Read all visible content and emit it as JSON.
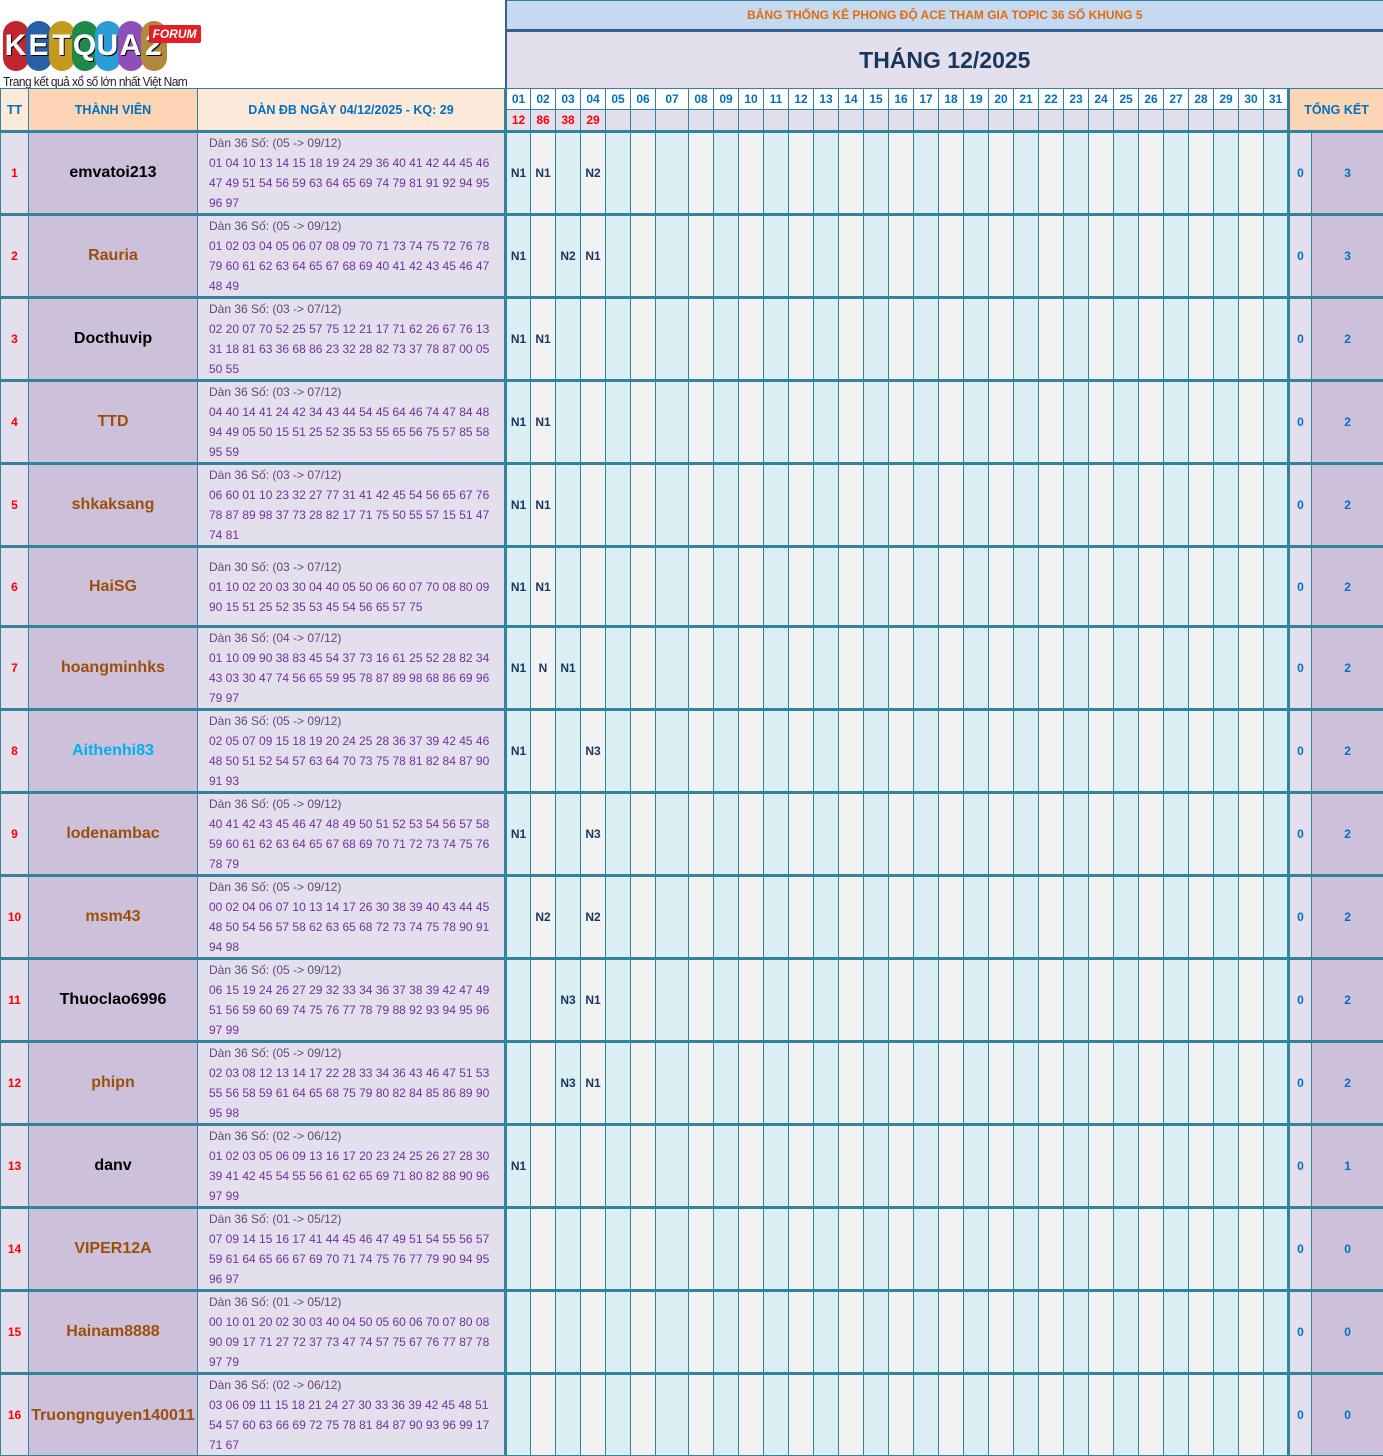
{
  "logo": {
    "letters": [
      "K",
      "E",
      "T",
      "Q",
      "U",
      "A",
      "2"
    ],
    "letter_colors": [
      "#c0262d",
      "#2a5fa8",
      "#c49a1c",
      "#1d8a4a",
      "#2b9cd8",
      "#8e4fb8",
      "#b08a3a"
    ],
    "badge": "FORUM",
    "tagline": "Trang kết quả xổ số lớn nhất Việt Nam"
  },
  "header": {
    "title": "BẢNG THỐNG KÊ PHONG ĐỘ ACE THAM GIA TOPIC 36 SỐ KHUNG 5",
    "month": "THÁNG 12/2025",
    "col_tt": "TT",
    "col_member": "THÀNH VIÊN",
    "col_dan": "DÀN ĐB NGÀY 04/12/2025 - KQ: 29",
    "col_total": "TỔNG KẾT"
  },
  "days": [
    "01",
    "02",
    "03",
    "04",
    "05",
    "06",
    "07",
    "08",
    "09",
    "10",
    "11",
    "12",
    "13",
    "14",
    "15",
    "16",
    "17",
    "18",
    "19",
    "20",
    "21",
    "22",
    "23",
    "24",
    "25",
    "26",
    "27",
    "28",
    "29",
    "30",
    "31"
  ],
  "results": [
    "12",
    "86",
    "38",
    "29"
  ],
  "colors": {
    "name_black": "#000000",
    "name_brown": "#9c4f0a",
    "name_cyan": "#00b0f0"
  },
  "rows": [
    {
      "tt": "1",
      "name": "emvatoi213",
      "color": "name_black",
      "dan_header": "Dàn 36 Số: (05 -> 09/12)",
      "numbers": "01 04 10 13 14 15 18 19 24 29 36 40 41 42 44 45 46 47 49 51 54 56 59 63 64 65 69 74 79 81 91 92 94 95 96 97",
      "marks": {
        "01": "N1",
        "02": "N1",
        "04": "N2"
      },
      "zero": "0",
      "total": "3"
    },
    {
      "tt": "2",
      "name": "Rauria",
      "color": "name_brown",
      "dan_header": "Dàn 36 Số: (05 -> 09/12)",
      "numbers": "01 02 03 04 05 06 07 08 09 70 71 73 74 75 72 76 78 79 60 61 62 63 64 65 67 68 69 40 41 42 43 45 46 47 48 49",
      "marks": {
        "01": "N1",
        "03": "N2",
        "04": "N1"
      },
      "zero": "0",
      "total": "3"
    },
    {
      "tt": "3",
      "name": "Docthuvip",
      "color": "name_black",
      "dan_header": "Dàn 36 Số: (03 -> 07/12)",
      "numbers": "02 20 07 70 52 25 57 75 12 21 17 71 62 26 67 76 13 31 18 81 63 36 68 86 23 32 28 82 73 37 78 87 00 05 50 55",
      "marks": {
        "01": "N1",
        "02": "N1"
      },
      "zero": "0",
      "total": "2"
    },
    {
      "tt": "4",
      "name": "TTD",
      "color": "name_brown",
      "dan_header": "Dàn 36 Số: (03 -> 07/12)",
      "numbers": "04 40 14 41 24 42 34 43 44 54 45 64 46 74 47 84 48 94 49 05 50 15 51 25 52 35 53 55 65 56 75 57 85 58 95 59",
      "marks": {
        "01": "N1",
        "02": "N1"
      },
      "zero": "0",
      "total": "2"
    },
    {
      "tt": "5",
      "name": "shkaksang",
      "color": "name_brown",
      "dan_header": "Dàn 36 Số: (03 -> 07/12)",
      "numbers": "06 60 01 10 23 32 27 77 31 41 42 45 54 56 65 67 76 78 87 89 98 37 73 28 82 17 71 75 50 55 57 15 51 47 74 81",
      "marks": {
        "01": "N1",
        "02": "N1"
      },
      "zero": "0",
      "total": "2"
    },
    {
      "tt": "6",
      "name": "HaiSG",
      "color": "name_brown",
      "dan_header": "Dàn 30 Số: (03 -> 07/12)",
      "numbers": "01 10 02 20 03 30 04 40 05 50 06 60 07 70 08 80 09 90 15 51 25 52 35 53 45 54 56 65 57 75",
      "marks": {
        "01": "N1",
        "02": "N1"
      },
      "zero": "0",
      "total": "2"
    },
    {
      "tt": "7",
      "name": "hoangminhks",
      "color": "name_brown",
      "dan_header": "Dàn 36 Số: (04 -> 07/12)",
      "numbers": "01 10 09 90 38 83 45 54 37 73 16 61 25 52 28 82 34 43 03 30 47 74 56 65 59 95 78 87 89 98 68 86 69 96 79 97",
      "marks": {
        "01": "N1",
        "02": "N",
        "03": "N1"
      },
      "zero": "0",
      "total": "2"
    },
    {
      "tt": "8",
      "name": "Aithenhi83",
      "color": "name_cyan",
      "dan_header": "Dàn 36 Số: (05 -> 09/12)",
      "numbers": "02 05 07 09 15 18 19 20 24 25 28 36 37 39 42 45 46 48 50 51 52 54 57 63 64 70 73 75 78 81 82 84 87 90 91 93",
      "marks": {
        "01": "N1",
        "04": "N3"
      },
      "zero": "0",
      "total": "2"
    },
    {
      "tt": "9",
      "name": "lodenambac",
      "color": "name_brown",
      "dan_header": "Dàn 36 Số: (05 -> 09/12)",
      "numbers": "40 41 42 43 45 46 47 48 49 50 51 52 53 54 56 57 58 59 60 61 62 63 64 65 67 68 69 70 71 72 73 74 75 76 78 79",
      "marks": {
        "01": "N1",
        "04": "N3"
      },
      "zero": "0",
      "total": "2"
    },
    {
      "tt": "10",
      "name": "msm43",
      "color": "name_brown",
      "dan_header": "Dàn 36 Số: (05 -> 09/12)",
      "numbers": "00 02 04 06 07 10 13 14 17 26 30 38 39 40 43 44 45 48 50 54 56 57 58 62 63 65 68 72 73 74 75 78 90 91 94 98",
      "marks": {
        "02": "N2",
        "04": "N2"
      },
      "zero": "0",
      "total": "2"
    },
    {
      "tt": "11",
      "name": "Thuoclao6996",
      "color": "name_black",
      "dan_header": "Dàn 36 Số: (05 -> 09/12)",
      "numbers": "06 15 19 24 26 27 29 32 33 34 36 37 38 39 42 47 49 51 56 59 60 69 74 75 76 77 78 79 88 92 93 94 95 96 97 99",
      "marks": {
        "03": "N3",
        "04": "N1"
      },
      "zero": "0",
      "total": "2"
    },
    {
      "tt": "12",
      "name": "phipn",
      "color": "name_brown",
      "dan_header": "Dàn 36 Số: (05 -> 09/12)",
      "numbers": "02 03 08 12 13 14 17 22 28 33 34 36 43 46 47 51 53 55 56 58 59 61 64 65 68 75 79 80 82 84 85 86 89 90 95 98",
      "marks": {
        "03": "N3",
        "04": "N1"
      },
      "zero": "0",
      "total": "2"
    },
    {
      "tt": "13",
      "name": "danv",
      "color": "name_black",
      "dan_header": "Dàn 36 Số: (02 -> 06/12)",
      "numbers": "01 02 03 05 06 09 13 16 17 20 23 24 25 26 27 28 30 39 41 42 45 54 55 56 61 62 65 69 71 80 82 88 90 96 97 99",
      "marks": {
        "01": "N1"
      },
      "zero": "0",
      "total": "1"
    },
    {
      "tt": "14",
      "name": "VIPER12A",
      "color": "name_brown",
      "dan_header": "Dàn 36 Số: (01 -> 05/12)",
      "numbers": "07 09 14 15 16 17 41 44 45 46 47 49 51 54 55 56 57 59 61 64 65 66 67 69 70 71 74 75 76 77 79 90 94 95 96 97",
      "marks": {},
      "zero": "0",
      "total": "0"
    },
    {
      "tt": "15",
      "name": "Hainam8888",
      "color": "name_brown",
      "dan_header": "Dàn 36 Số: (01 -> 05/12)",
      "numbers": "00 10 01 20 02 30 03 40 04 50 05 60 06 70 07 80 08 90 09 17 71 27 72 37 73 47 74 57 75 67 76 77 87 78 97 79",
      "marks": {},
      "zero": "0",
      "total": "0"
    },
    {
      "tt": "16",
      "name": "Truongnguyen140011",
      "color": "name_brown",
      "dan_header": "Dàn 36 Số: (02 -> 06/12)",
      "numbers": "03 06 09 11 15 18 21 24 27 30 33 36 39 42 45 48 51 54 57 60 63 66 69 72 75 78 81 84 87 90 93 96 99 17 71 67",
      "marks": {},
      "zero": "0",
      "total": "0"
    }
  ]
}
